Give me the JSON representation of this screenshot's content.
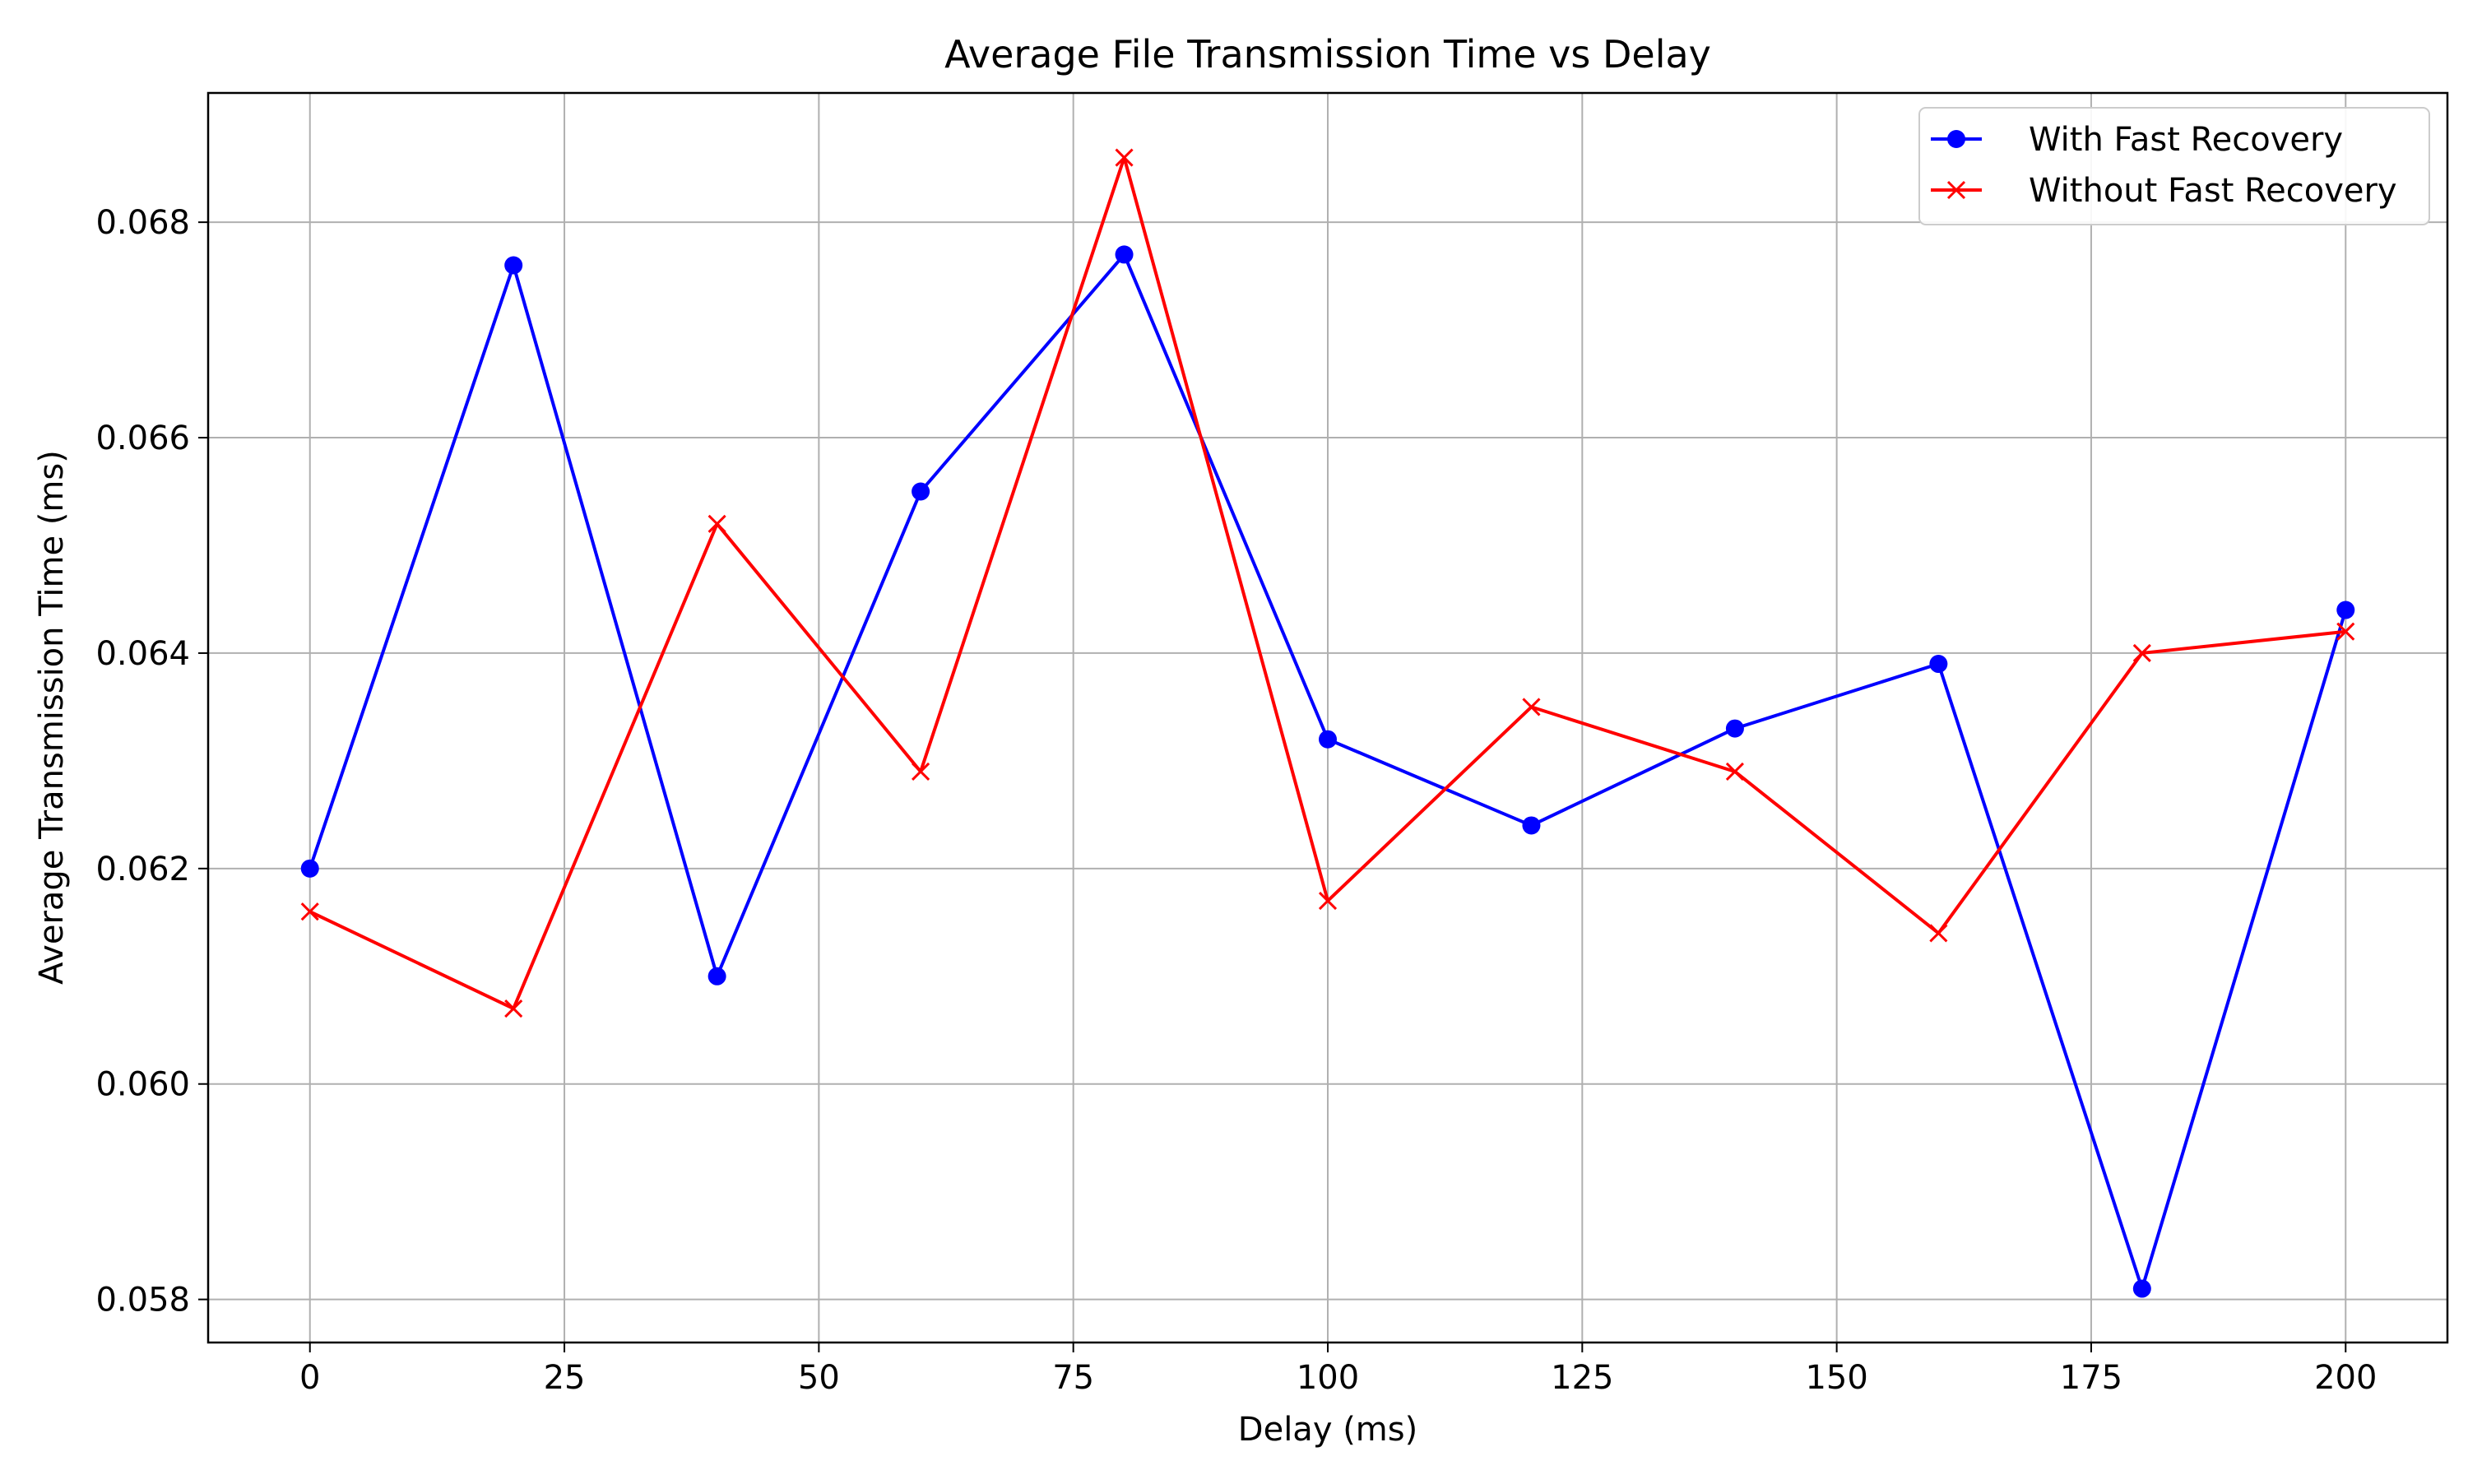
{
  "chart_data": {
    "type": "line",
    "title": "Average File Transmission Time vs Delay",
    "xlabel": "Delay (ms)",
    "ylabel": "Average Transmission Time (ms)",
    "xlim": [
      -10,
      210
    ],
    "ylim": [
      0.0576,
      0.0692
    ],
    "xticks": [
      0,
      25,
      50,
      75,
      100,
      125,
      150,
      175,
      200
    ],
    "yticks": [
      0.058,
      0.06,
      0.062,
      0.064,
      0.066,
      0.068
    ],
    "ytick_labels": [
      "0.058",
      "0.060",
      "0.062",
      "0.064",
      "0.066",
      "0.068"
    ],
    "grid": true,
    "legend_position": "top-right",
    "x": [
      0,
      20,
      40,
      60,
      80,
      100,
      120,
      140,
      160,
      180,
      200
    ],
    "series": [
      {
        "name": "With Fast Recovery",
        "color": "#0000ff",
        "marker": "circle",
        "values": [
          0.062,
          0.0676,
          0.061,
          0.0655,
          0.0677,
          0.0632,
          0.0624,
          0.0633,
          0.0639,
          0.0581,
          0.0644
        ]
      },
      {
        "name": "Without Fast Recovery",
        "color": "#ff0000",
        "marker": "x",
        "values": [
          0.0616,
          0.0607,
          0.0652,
          0.0629,
          0.0686,
          0.0617,
          0.0635,
          0.0629,
          0.0614,
          0.064,
          0.0642
        ]
      }
    ]
  }
}
